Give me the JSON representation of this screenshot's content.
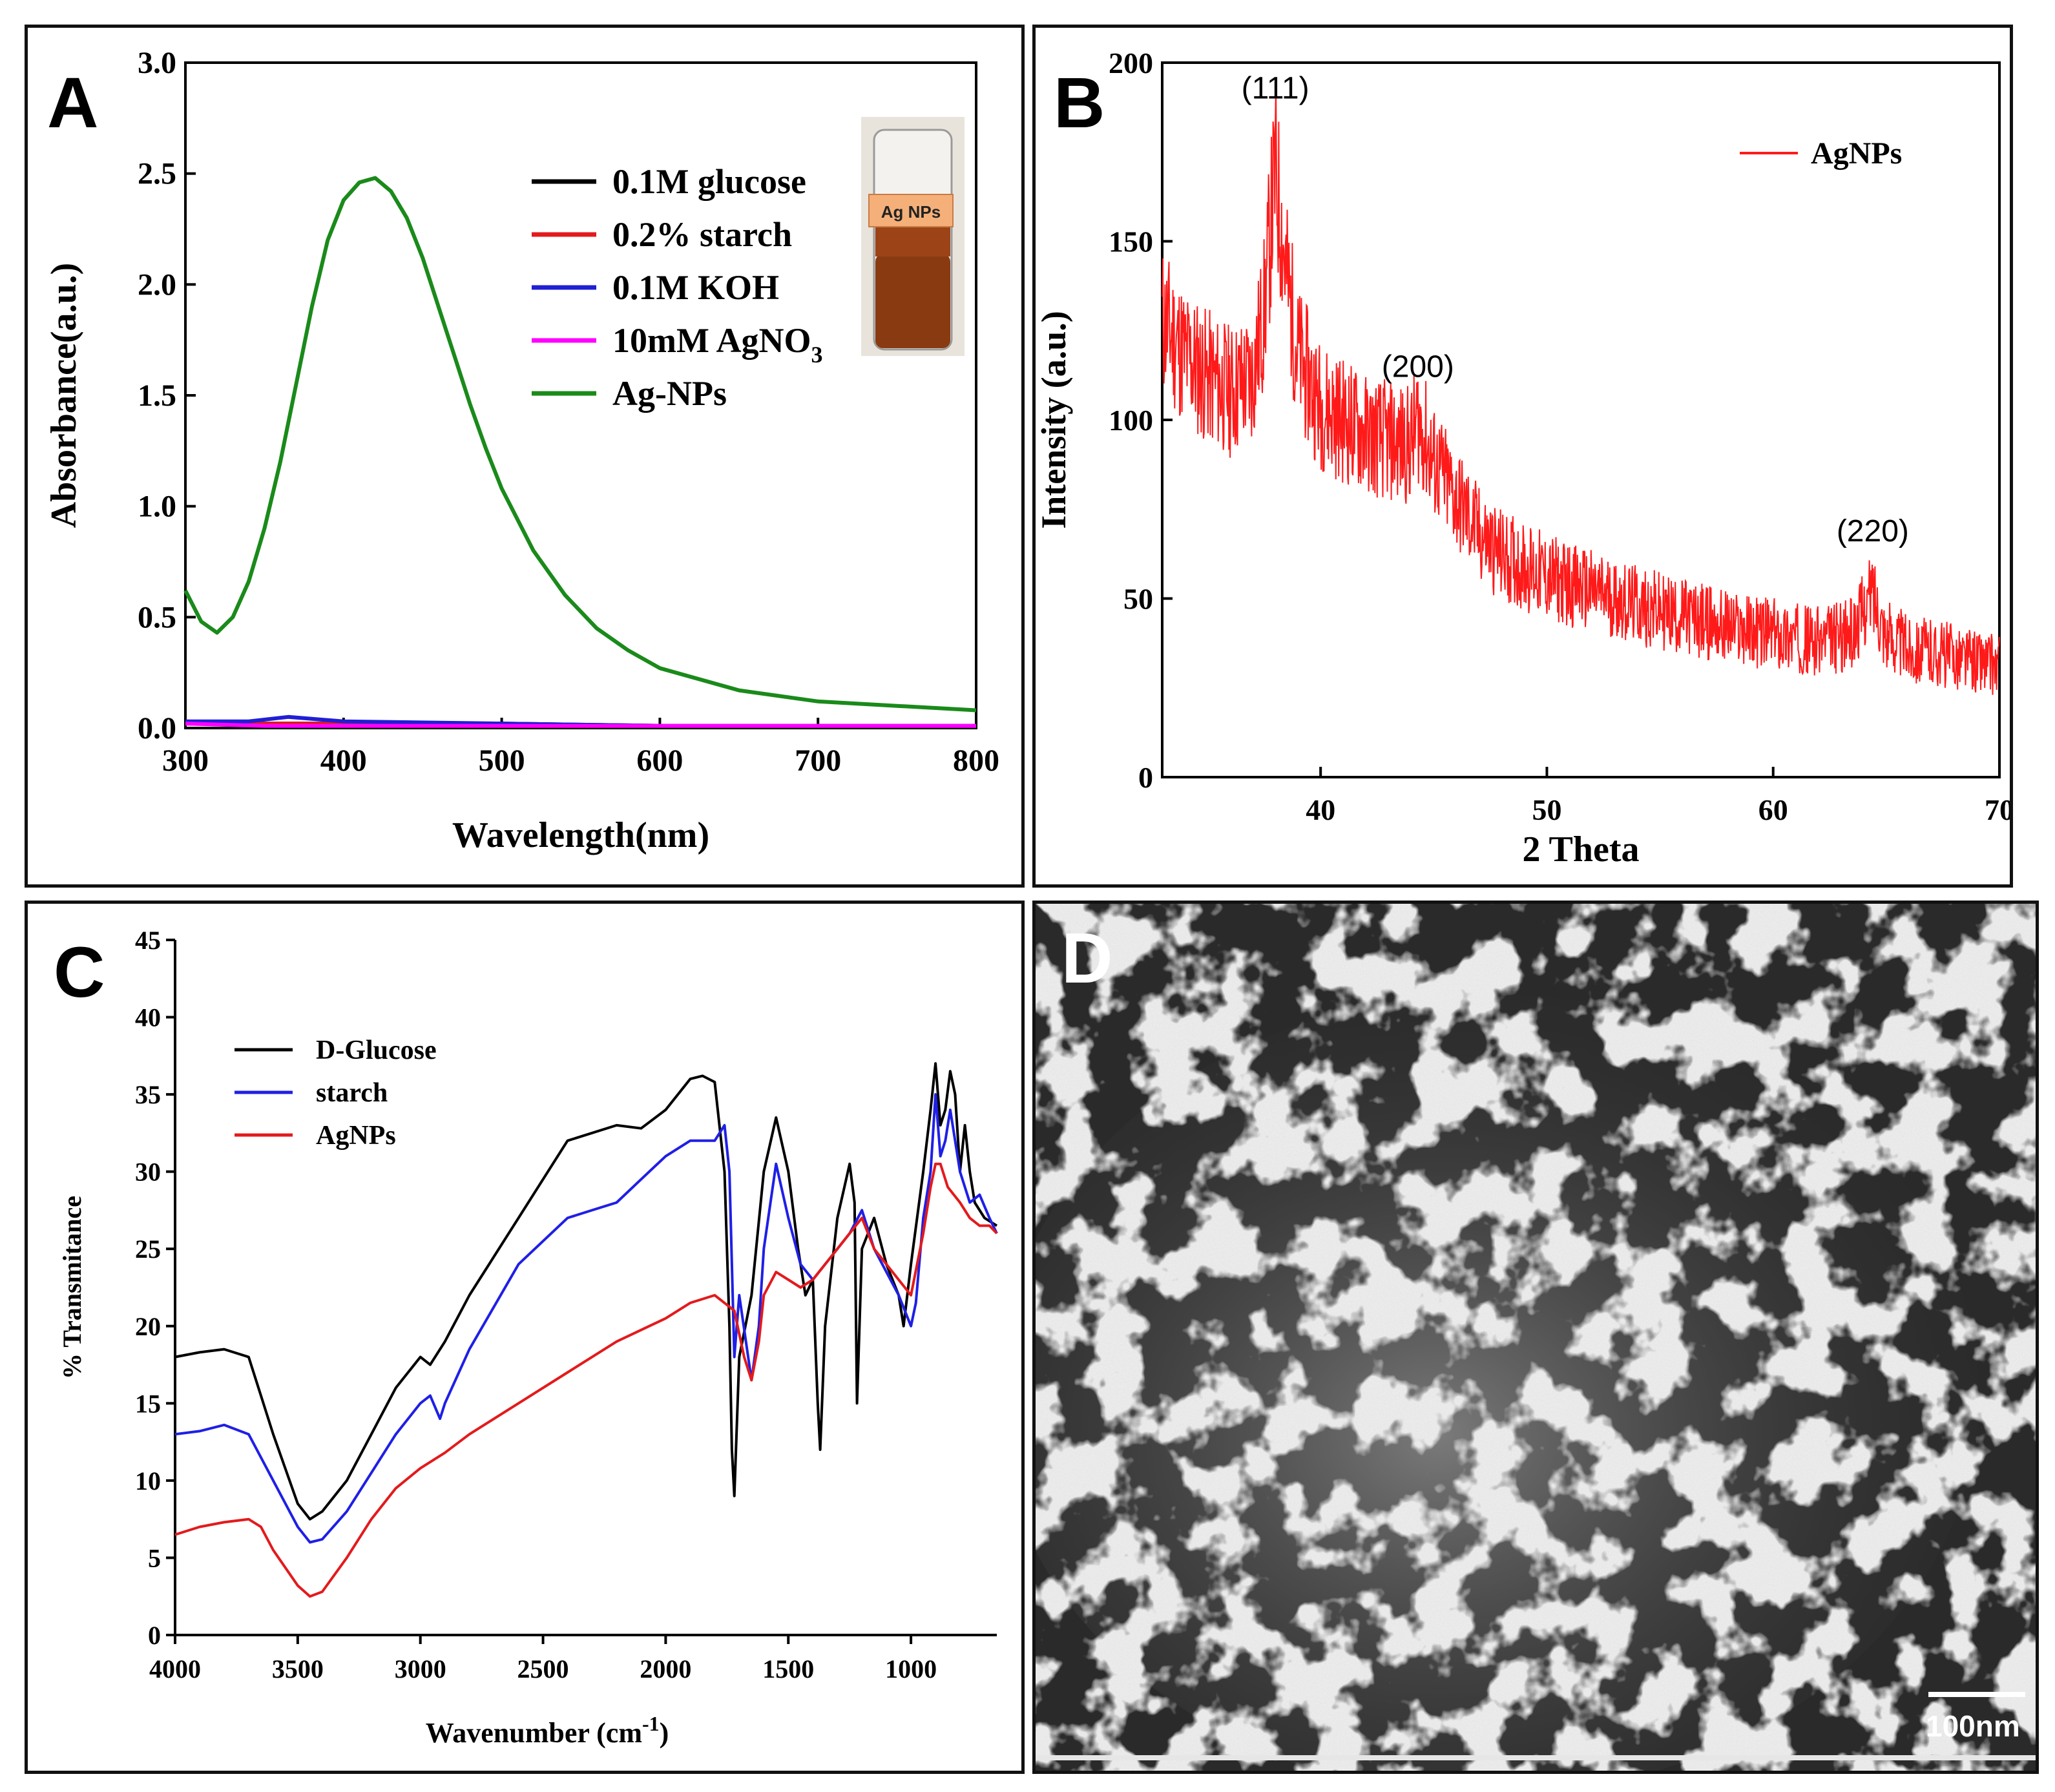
{
  "panels": {
    "A": {
      "letter": "A"
    },
    "B": {
      "letter": "B"
    },
    "C": {
      "letter": "C"
    },
    "D": {
      "letter": "D",
      "scale_bar_label": "100nm",
      "description_type": "SEM micrograph"
    }
  },
  "chart_data": [
    {
      "id": "A",
      "type": "line",
      "xlabel": "Wavelength(nm)",
      "ylabel": "Absorbance(a.u.)",
      "xlim": [
        300,
        800
      ],
      "ylim": [
        0.0,
        3.0
      ],
      "xticks": [
        300,
        400,
        500,
        600,
        700,
        800
      ],
      "yticks": [
        "0.0",
        "0.5",
        "1.0",
        "1.5",
        "2.0",
        "2.5",
        "3.0"
      ],
      "inset_label": "Ag NPs",
      "series": [
        {
          "name": "0.1M glucose",
          "color": "#000000",
          "x": [
            300,
            350,
            400,
            500,
            600,
            700,
            800
          ],
          "y": [
            0.02,
            0.02,
            0.02,
            0.02,
            0.01,
            0.01,
            0.01
          ]
        },
        {
          "name": "0.2% starch",
          "color": "#e31a1c",
          "x": [
            300,
            350,
            400,
            500,
            600,
            700,
            800
          ],
          "y": [
            0.03,
            0.02,
            0.02,
            0.01,
            0.01,
            0.01,
            0.01
          ]
        },
        {
          "name": "0.1M KOH",
          "color": "#1f1fd6",
          "x": [
            300,
            340,
            365,
            400,
            500,
            600,
            700,
            800
          ],
          "y": [
            0.03,
            0.03,
            0.05,
            0.03,
            0.02,
            0.01,
            0.01,
            0.01
          ]
        },
        {
          "name": "10mM AgNO",
          "subscript": "3",
          "color": "#ff00ff",
          "x": [
            300,
            350,
            400,
            500,
            600,
            700,
            800
          ],
          "y": [
            0.02,
            0.01,
            0.01,
            0.01,
            0.01,
            0.01,
            0.01
          ]
        },
        {
          "name": "Ag-NPs",
          "color": "#1a8a1a",
          "x": [
            300,
            310,
            320,
            330,
            340,
            350,
            360,
            370,
            380,
            390,
            400,
            410,
            420,
            430,
            440,
            450,
            460,
            470,
            480,
            490,
            500,
            520,
            540,
            560,
            580,
            600,
            650,
            700,
            750,
            800
          ],
          "y": [
            0.62,
            0.48,
            0.43,
            0.5,
            0.66,
            0.9,
            1.2,
            1.55,
            1.9,
            2.2,
            2.38,
            2.46,
            2.48,
            2.42,
            2.3,
            2.12,
            1.9,
            1.68,
            1.46,
            1.26,
            1.08,
            0.8,
            0.6,
            0.45,
            0.35,
            0.27,
            0.17,
            0.12,
            0.1,
            0.08
          ]
        }
      ]
    },
    {
      "id": "B",
      "type": "line",
      "xlabel": "2 Theta",
      "ylabel": "Intensity (a.u.)",
      "xlim": [
        33,
        70
      ],
      "ylim": [
        0,
        200
      ],
      "xticks": [
        40,
        50,
        60,
        70
      ],
      "yticks": [
        0,
        50,
        100,
        150,
        200
      ],
      "annotations": [
        {
          "text": "(111)",
          "x": 38.0,
          "y": 190
        },
        {
          "text": "(200)",
          "x": 44.3,
          "y": 112
        },
        {
          "text": "(220)",
          "x": 64.4,
          "y": 66
        }
      ],
      "series": [
        {
          "name": "AgNPs",
          "color": "#ff1a1a",
          "x": [
            33,
            34,
            35,
            36,
            37,
            37.5,
            38,
            38.5,
            39,
            40,
            41,
            42,
            43,
            44,
            44.3,
            45,
            46,
            47,
            48,
            50,
            52,
            54,
            56,
            58,
            60,
            62,
            63.5,
            64.4,
            65,
            66,
            68,
            70
          ],
          "y": [
            128,
            118,
            112,
            108,
            112,
            130,
            170,
            140,
            118,
            104,
            100,
            96,
            94,
            93,
            100,
            88,
            78,
            68,
            62,
            56,
            52,
            48,
            45,
            42,
            40,
            38,
            40,
            52,
            40,
            36,
            34,
            31
          ]
        }
      ]
    },
    {
      "id": "C",
      "type": "line",
      "xlabel": "Wavenumber (cm",
      "xlabel_sup": "-1",
      "xlabel_end": ")",
      "ylabel": "% Transmitance",
      "xlim": [
        4000,
        650
      ],
      "ylim": [
        0,
        45
      ],
      "xticks": [
        4000,
        3500,
        3000,
        2500,
        2000,
        1500,
        1000
      ],
      "yticks": [
        0,
        5,
        10,
        15,
        20,
        25,
        30,
        35,
        40,
        45
      ],
      "series": [
        {
          "name": "D-Glucose",
          "color": "#000000",
          "x": [
            4000,
            3900,
            3800,
            3700,
            3600,
            3500,
            3450,
            3400,
            3300,
            3200,
            3100,
            3000,
            2960,
            2900,
            2800,
            2600,
            2400,
            2200,
            2100,
            2000,
            1900,
            1850,
            1800,
            1760,
            1740,
            1730,
            1720,
            1700,
            1650,
            1600,
            1550,
            1500,
            1460,
            1430,
            1400,
            1380,
            1370,
            1350,
            1300,
            1250,
            1230,
            1220,
            1200,
            1150,
            1100,
            1050,
            1030,
            1000,
            950,
            920,
            900,
            880,
            860,
            840,
            820,
            800,
            780,
            760,
            740,
            700,
            650
          ],
          "y": [
            18,
            18.3,
            18.5,
            18,
            13,
            8.5,
            7.5,
            8,
            10,
            13,
            16,
            18,
            17.5,
            19,
            22,
            27,
            32,
            33,
            32.8,
            34,
            36,
            36.2,
            35.8,
            30,
            20,
            12,
            9,
            18,
            22,
            30,
            33.5,
            30,
            25,
            22,
            23,
            15,
            12,
            20,
            27,
            30.5,
            28,
            15,
            25,
            27,
            24,
            22,
            20,
            24,
            30,
            34,
            37,
            33,
            34,
            36.5,
            35,
            30,
            33,
            30,
            28,
            27,
            26.5
          ]
        },
        {
          "name": "starch",
          "color": "#1f1fe6",
          "x": [
            4000,
            3900,
            3800,
            3700,
            3600,
            3500,
            3450,
            3400,
            3300,
            3200,
            3100,
            3000,
            2960,
            2920,
            2900,
            2800,
            2600,
            2400,
            2300,
            2200,
            2100,
            2000,
            1900,
            1800,
            1760,
            1740,
            1720,
            1700,
            1650,
            1620,
            1600,
            1550,
            1500,
            1450,
            1400,
            1350,
            1300,
            1250,
            1200,
            1150,
            1100,
            1050,
            1000,
            980,
            950,
            920,
            900,
            880,
            860,
            840,
            800,
            760,
            720,
            680,
            650
          ],
          "y": [
            13,
            13.2,
            13.6,
            13,
            10,
            7,
            6,
            6.2,
            8,
            10.5,
            13,
            15,
            15.5,
            14,
            15,
            18.5,
            24,
            27,
            27.5,
            28,
            29.5,
            31,
            32,
            32,
            33,
            30,
            18,
            22,
            16.5,
            20,
            25,
            30.5,
            27,
            24,
            23,
            24,
            25,
            26,
            27.5,
            25,
            23.5,
            22,
            20,
            21.5,
            27,
            30,
            35,
            31,
            32,
            34,
            30,
            28,
            28.5,
            27,
            26
          ]
        },
        {
          "name": "AgNPs",
          "color": "#e31a1c",
          "x": [
            4000,
            3900,
            3800,
            3700,
            3650,
            3600,
            3500,
            3450,
            3400,
            3300,
            3200,
            3100,
            3000,
            2900,
            2800,
            2600,
            2400,
            2200,
            2000,
            1900,
            1800,
            1760,
            1720,
            1680,
            1650,
            1620,
            1600,
            1550,
            1500,
            1450,
            1400,
            1350,
            1300,
            1250,
            1200,
            1150,
            1100,
            1050,
            1000,
            950,
            920,
            900,
            880,
            850,
            800,
            760,
            720,
            680,
            650
          ],
          "y": [
            6.5,
            7,
            7.3,
            7.5,
            7,
            5.5,
            3.2,
            2.5,
            2.8,
            5,
            7.5,
            9.5,
            10.8,
            11.8,
            13,
            15,
            17,
            19,
            20.5,
            21.5,
            22,
            21.5,
            21,
            18,
            16.5,
            19,
            22,
            23.5,
            23,
            22.5,
            23,
            24,
            25,
            26,
            27,
            25,
            24,
            23,
            22,
            26,
            29,
            30.5,
            30.5,
            29,
            28,
            27,
            26.5,
            26.5,
            26
          ]
        }
      ]
    }
  ]
}
